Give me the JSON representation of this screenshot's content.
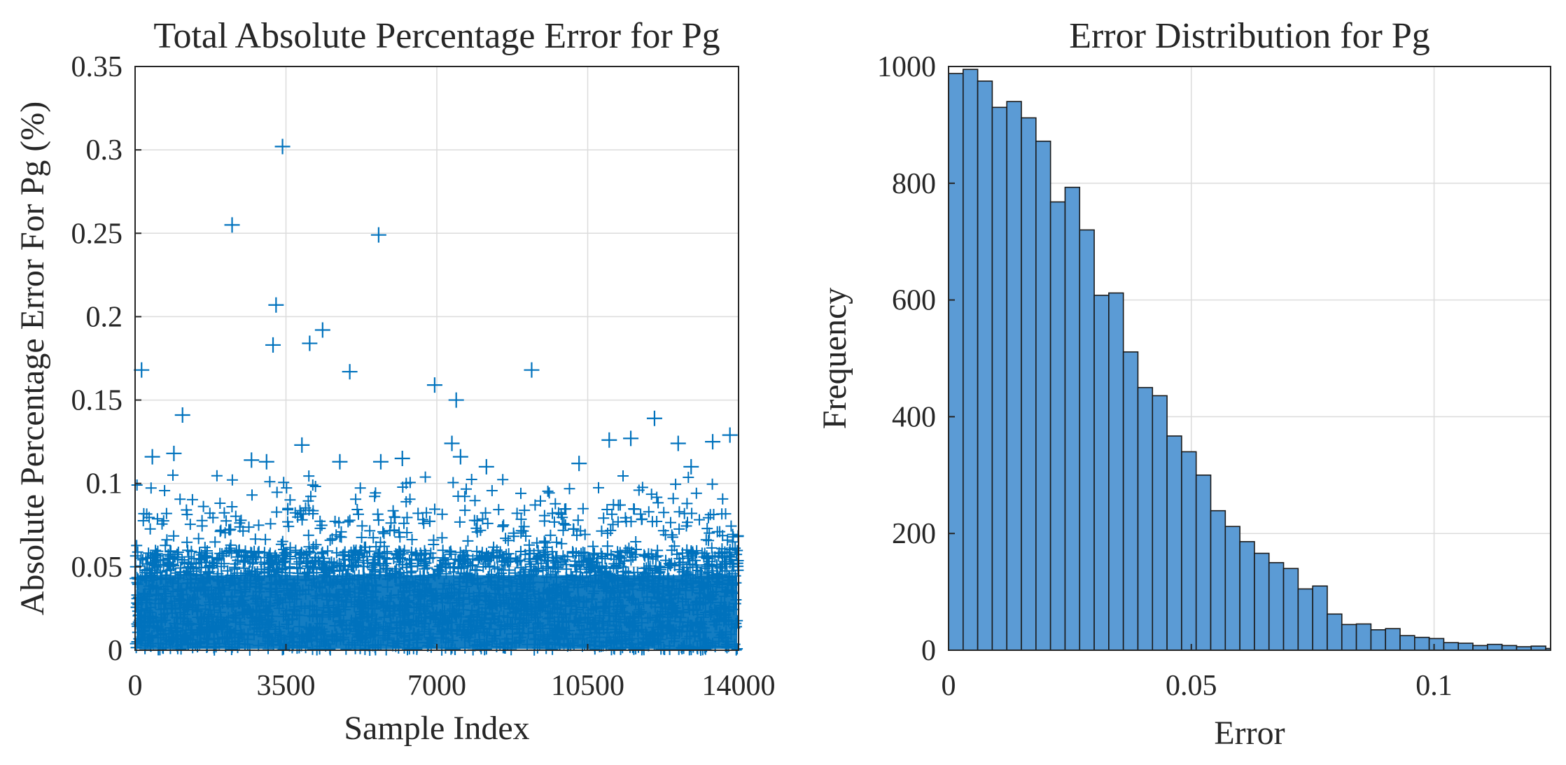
{
  "chart_data": [
    {
      "type": "scatter",
      "title": "Total Absolute Percentage Error for Pg",
      "xlabel": "Sample Index",
      "ylabel": "Absolute Percentage Error For Pg (%)",
      "xlim": [
        0,
        14000
      ],
      "ylim": [
        0,
        0.35
      ],
      "xticks": [
        0,
        3500,
        7000,
        10500,
        14000
      ],
      "yticks": [
        0,
        0.05,
        0.1,
        0.15,
        0.2,
        0.25,
        0.3,
        0.35
      ],
      "xtick_labels": [
        "0",
        "3500",
        "7000",
        "10500",
        "14000"
      ],
      "ytick_labels": [
        "0",
        "0.05",
        "0.1",
        "0.15",
        "0.2",
        "0.25",
        "0.3",
        "0.35"
      ],
      "grid": true,
      "marker": "+",
      "color": "#0072BD",
      "n_samples": 14000,
      "bulk_range": [
        0,
        0.06
      ],
      "highlighted_points": [
        {
          "x": 150,
          "y": 0.168
        },
        {
          "x": 1100,
          "y": 0.141
        },
        {
          "x": 2250,
          "y": 0.255
        },
        {
          "x": 3200,
          "y": 0.183
        },
        {
          "x": 3270,
          "y": 0.207
        },
        {
          "x": 3420,
          "y": 0.302
        },
        {
          "x": 4050,
          "y": 0.184
        },
        {
          "x": 4350,
          "y": 0.192
        },
        {
          "x": 4980,
          "y": 0.167
        },
        {
          "x": 5650,
          "y": 0.249
        },
        {
          "x": 6950,
          "y": 0.159
        },
        {
          "x": 7450,
          "y": 0.15
        },
        {
          "x": 9200,
          "y": 0.168
        },
        {
          "x": 12050,
          "y": 0.139
        },
        {
          "x": 3870,
          "y": 0.123
        },
        {
          "x": 7350,
          "y": 0.124
        },
        {
          "x": 7550,
          "y": 0.116
        },
        {
          "x": 11000,
          "y": 0.126
        },
        {
          "x": 11500,
          "y": 0.127
        },
        {
          "x": 12600,
          "y": 0.124
        },
        {
          "x": 13400,
          "y": 0.125
        },
        {
          "x": 13800,
          "y": 0.129
        },
        {
          "x": 400,
          "y": 0.116
        },
        {
          "x": 900,
          "y": 0.118
        },
        {
          "x": 2700,
          "y": 0.114
        },
        {
          "x": 3050,
          "y": 0.113
        },
        {
          "x": 4750,
          "y": 0.113
        },
        {
          "x": 5700,
          "y": 0.113
        },
        {
          "x": 6200,
          "y": 0.115
        },
        {
          "x": 8150,
          "y": 0.11
        },
        {
          "x": 10300,
          "y": 0.112
        },
        {
          "x": 12900,
          "y": 0.11
        }
      ]
    },
    {
      "type": "bar",
      "subtype": "histogram",
      "title": "Error Distribution for Pg",
      "xlabel": "Error",
      "ylabel": "Frequency",
      "xlim": [
        0,
        0.124
      ],
      "ylim": [
        0,
        1000
      ],
      "xticks": [
        0,
        0.05,
        0.1
      ],
      "yticks": [
        0,
        200,
        400,
        600,
        800,
        1000
      ],
      "xtick_labels": [
        "0",
        "0.05",
        "0.1"
      ],
      "ytick_labels": [
        "0",
        "200",
        "400",
        "600",
        "800",
        "1000"
      ],
      "grid": true,
      "bin_width": 0.003,
      "bin_start": 0,
      "color": "#5B9BD5",
      "edge_color": "#1A1A1A",
      "values": [
        988,
        995,
        975,
        930,
        940,
        912,
        872,
        768,
        793,
        720,
        608,
        612,
        511,
        450,
        436,
        367,
        340,
        300,
        239,
        212,
        186,
        166,
        150,
        140,
        105,
        110,
        62,
        44,
        45,
        35,
        37,
        25,
        22,
        20,
        13,
        12,
        8,
        10,
        8,
        6,
        7,
        3
      ]
    }
  ]
}
